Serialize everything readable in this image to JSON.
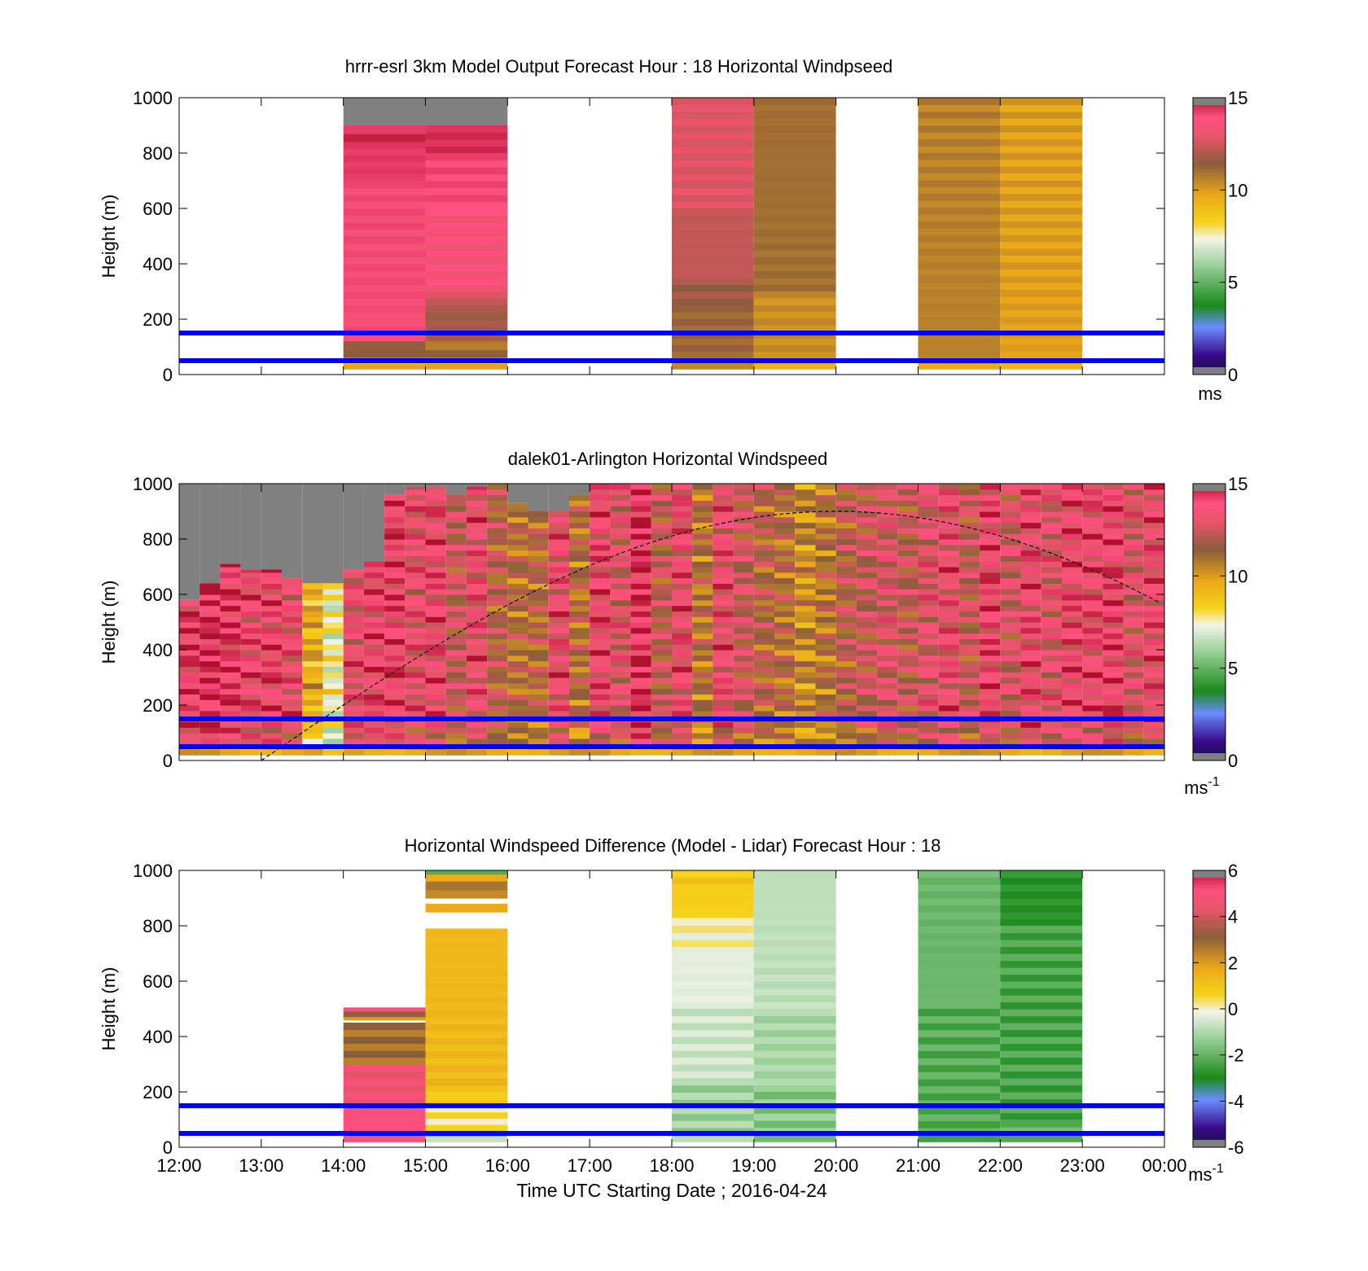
{
  "figure": {
    "xlabel": "Time UTC  Starting Date ; 2016-04-24",
    "x_ticks": [
      "12:00",
      "13:00",
      "14:00",
      "15:00",
      "16:00",
      "17:00",
      "18:00",
      "19:00",
      "20:00",
      "21:00",
      "22:00",
      "23:00",
      "00:00"
    ]
  },
  "chart_data": [
    {
      "type": "heatmap",
      "title": "hrrr-esrl 3km Model Output   Forecast Hour : 18 Horizontal Windpseed",
      "ylabel": "Height (m)",
      "xlim": [
        12,
        24
      ],
      "ylim": [
        0,
        1000
      ],
      "y_ticks": [
        "0",
        "200",
        "400",
        "600",
        "800",
        "1000"
      ],
      "colorbar": {
        "ticks": [
          "0",
          "5",
          "10",
          "15"
        ],
        "range": [
          0,
          15
        ],
        "unit": "ms"
      },
      "reference_lines_m": [
        50,
        150
      ],
      "columns": [
        {
          "start": 14,
          "end": 15,
          "bands": [
            [
              900,
              1000,
              "nan"
            ],
            [
              840,
              900,
              14.5
            ],
            [
              700,
              840,
              14.3
            ],
            [
              200,
              700,
              13.8
            ],
            [
              120,
              200,
              13.8
            ],
            [
              60,
              120,
              11.5
            ],
            [
              20,
              60,
              9.5
            ]
          ]
        },
        {
          "start": 15,
          "end": 16,
          "bands": [
            [
              900,
              1000,
              "nan"
            ],
            [
              800,
              900,
              14.5
            ],
            [
              600,
              800,
              14.0
            ],
            [
              300,
              600,
              13.6
            ],
            [
              250,
              300,
              12.5
            ],
            [
              120,
              250,
              11.8
            ],
            [
              60,
              120,
              11.0
            ],
            [
              20,
              60,
              9.5
            ]
          ]
        },
        {
          "start": 18,
          "end": 19,
          "bands": [
            [
              600,
              1000,
              12.8
            ],
            [
              350,
              600,
              12.3
            ],
            [
              250,
              350,
              11.7
            ],
            [
              60,
              250,
              11.3
            ],
            [
              20,
              60,
              10.5
            ]
          ]
        },
        {
          "start": 19,
          "end": 20,
          "bands": [
            [
              300,
              1000,
              11.0
            ],
            [
              60,
              300,
              10.3
            ],
            [
              20,
              60,
              9.6
            ]
          ]
        },
        {
          "start": 21,
          "end": 22,
          "bands": [
            [
              60,
              1000,
              10.6
            ],
            [
              20,
              60,
              9.8
            ]
          ]
        },
        {
          "start": 22,
          "end": 23,
          "bands": [
            [
              60,
              1000,
              9.9
            ],
            [
              20,
              60,
              9.5
            ]
          ]
        }
      ]
    },
    {
      "type": "heatmap",
      "title": "dalek01-Arlington  Horizontal Windspeed",
      "ylabel": "Height (m)",
      "xlim": [
        12,
        24
      ],
      "ylim": [
        0,
        1000
      ],
      "y_ticks": [
        "0",
        "200",
        "400",
        "600",
        "800",
        "1000"
      ],
      "colorbar": {
        "ticks": [
          "0",
          "5",
          "10",
          "15"
        ],
        "range": [
          0,
          15
        ],
        "unit": "ms",
        "unit_exp": "-1"
      },
      "reference_lines_m": [
        50,
        150
      ],
      "column_width_h": 0.25,
      "column_tops_m": [
        580,
        640,
        710,
        690,
        690,
        660,
        640,
        640,
        690,
        720,
        960,
        990,
        990,
        960,
        990,
        1000,
        930,
        900,
        900,
        960,
        1000,
        1000,
        1000,
        1000,
        1000,
        1000,
        1000,
        1000,
        1000,
        1000,
        1000,
        1000,
        1000,
        1000,
        1000,
        1000,
        1000,
        1000,
        1000,
        1000,
        1000,
        1000,
        1000,
        1000,
        1000,
        1000,
        1000,
        1000
      ],
      "column_speeds_ms": [
        14.0,
        14.5,
        14.2,
        13.6,
        13.8,
        13.3,
        9.5,
        7.5,
        13.2,
        13.7,
        13.9,
        13.2,
        13.6,
        12.3,
        13.4,
        11.8,
        11.2,
        11.4,
        13.4,
        11.2,
        13.7,
        12.8,
        14.4,
        12.1,
        13.5,
        11.0,
        13.4,
        12.4,
        11.6,
        11.2,
        10.3,
        11.0,
        11.9,
        12.3,
        12.8,
        12.1,
        12.9,
        13.4,
        12.2,
        13.8,
        12.6,
        13.6,
        12.9,
        13.7,
        13.6,
        13.9,
        12.8,
        13.5
      ],
      "solar_curve": {
        "amplitude_m": 900,
        "rise_h": 13.0,
        "peak_h": 20.0
      }
    },
    {
      "type": "heatmap",
      "title": "Horizontal Windspeed Difference (Model - Lidar) Forecast Hour : 18",
      "ylabel": "Height (m)",
      "xlim": [
        12,
        24
      ],
      "ylim": [
        0,
        1000
      ],
      "y_ticks": [
        "0",
        "200",
        "400",
        "600",
        "800",
        "1000"
      ],
      "colorbar": {
        "ticks": [
          "-6",
          "-4",
          "-2",
          "0",
          "2",
          "4",
          "6"
        ],
        "range": [
          -6,
          6
        ],
        "unit": "ms",
        "unit_exp": "-1"
      },
      "reference_lines_m": [
        50,
        150
      ],
      "columns": [
        {
          "start": 14,
          "end": 15,
          "bands": [
            [
              490,
              505,
              4.5
            ],
            [
              470,
              490,
              3.0
            ],
            [
              460,
              470,
              2.0
            ],
            [
              300,
              450,
              2.8
            ],
            [
              150,
              300,
              4.6
            ],
            [
              20,
              150,
              5.0
            ]
          ]
        },
        {
          "start": 15,
          "end": 16,
          "bands": [
            [
              985,
              1000,
              -2.5
            ],
            [
              960,
              985,
              1.5
            ],
            [
              900,
              960,
              2.5
            ],
            [
              850,
              880,
              2.0
            ],
            [
              200,
              790,
              1.3
            ],
            [
              150,
              200,
              0.8
            ],
            [
              60,
              150,
              0.3
            ],
            [
              20,
              60,
              -1.0
            ]
          ]
        },
        {
          "start": 18,
          "end": 19,
          "bands": [
            [
              950,
              1000,
              0.9
            ],
            [
              860,
              950,
              0.7
            ],
            [
              800,
              860,
              0.3
            ],
            [
              700,
              800,
              0.0
            ],
            [
              500,
              700,
              -0.3
            ],
            [
              250,
              500,
              -0.6
            ],
            [
              20,
              250,
              -1.2
            ]
          ]
        },
        {
          "start": 19,
          "end": 20,
          "bands": [
            [
              500,
              1000,
              -0.8
            ],
            [
              200,
              500,
              -1.1
            ],
            [
              20,
              200,
              -1.5
            ]
          ]
        },
        {
          "start": 21,
          "end": 22,
          "bands": [
            [
              500,
              1000,
              -1.9
            ],
            [
              20,
              500,
              -2.2
            ]
          ]
        },
        {
          "start": 22,
          "end": 23,
          "bands": [
            [
              800,
              1000,
              -2.8
            ],
            [
              100,
              800,
              -2.4
            ],
            [
              20,
              100,
              -2.0
            ]
          ]
        }
      ]
    }
  ]
}
